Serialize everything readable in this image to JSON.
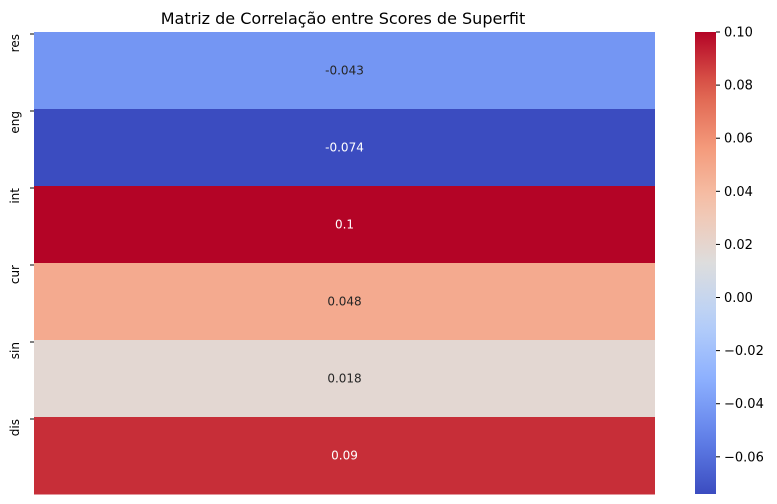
{
  "chart_data": {
    "type": "heatmap",
    "title": "Matriz de Correlação entre Scores de Superfit",
    "xlabel": "",
    "ylabel": "",
    "rows": [
      "res",
      "eng",
      "int",
      "cur",
      "sin",
      "dis"
    ],
    "values": [
      -0.043,
      -0.074,
      0.1,
      0.048,
      0.018,
      0.09
    ],
    "cell_labels": [
      "-0.043",
      "-0.074",
      "0.1",
      "0.048",
      "0.018",
      "0.09"
    ],
    "colormap": "coolwarm",
    "color_range": [
      -0.074,
      0.1
    ],
    "colorbar_ticks": [
      0.1,
      0.08,
      0.06,
      0.04,
      0.02,
      0.0,
      -0.02,
      -0.04,
      -0.06
    ],
    "colorbar_tick_labels": [
      "0.10",
      "0.08",
      "0.06",
      "0.04",
      "0.02",
      "0.00",
      "−0.02",
      "−0.04",
      "−0.06"
    ]
  }
}
